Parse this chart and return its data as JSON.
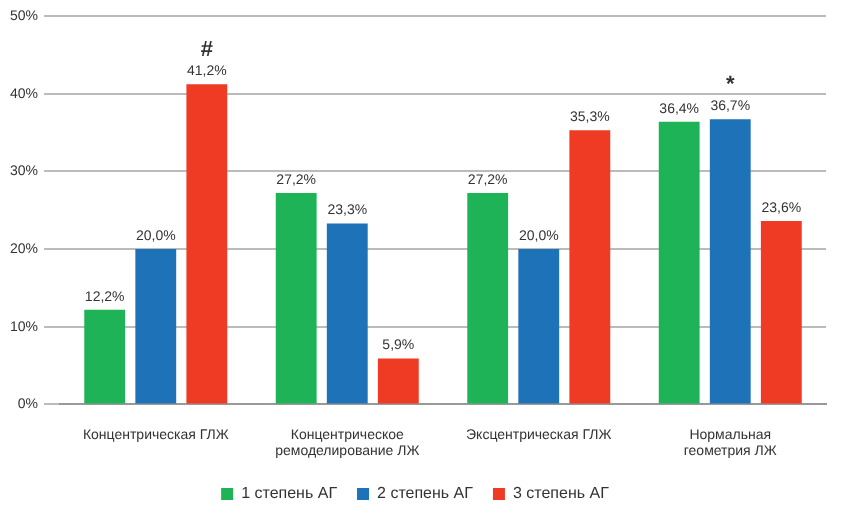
{
  "chart_data": {
    "type": "bar",
    "categories": [
      "Концентрическая ГЛЖ",
      "Концентрическое ремоделирование ЛЖ",
      "Эксцентрическая ГЛЖ",
      "Нормальная геометрия ЛЖ"
    ],
    "series": [
      {
        "name": "1 степень АГ",
        "color": "#1db356",
        "values": [
          12.2,
          27.2,
          27.2,
          36.4
        ],
        "value_labels": [
          "12,2%",
          "27,2%",
          "27,2%",
          "36,4%"
        ]
      },
      {
        "name": "2 степень АГ",
        "color": "#1d72b8",
        "values": [
          20.0,
          23.3,
          20.0,
          36.7
        ],
        "value_labels": [
          "20,0%",
          "23,3%",
          "20,0%",
          "36,7%"
        ]
      },
      {
        "name": "3 степень АГ",
        "color": "#ef3b24",
        "values": [
          41.2,
          5.9,
          35.3,
          23.6
        ],
        "value_labels": [
          "41,2%",
          "5,9%",
          "35,3%",
          "23,6%"
        ]
      }
    ],
    "ylim": [
      0,
      50
    ],
    "yticks": [
      {
        "value": 0,
        "label": "0%"
      },
      {
        "value": 10,
        "label": "10%"
      },
      {
        "value": 20,
        "label": "20%"
      },
      {
        "value": 30,
        "label": "30%"
      },
      {
        "value": 40,
        "label": "40%"
      },
      {
        "value": 50,
        "label": "50%"
      }
    ],
    "grid": "y",
    "legend": "bottom",
    "annotations": [
      "#",
      {
        "text": "*",
        "x": "Нормальная геометрия ЛЖ",
        "y": 36.7
      }
    ]
  }
}
